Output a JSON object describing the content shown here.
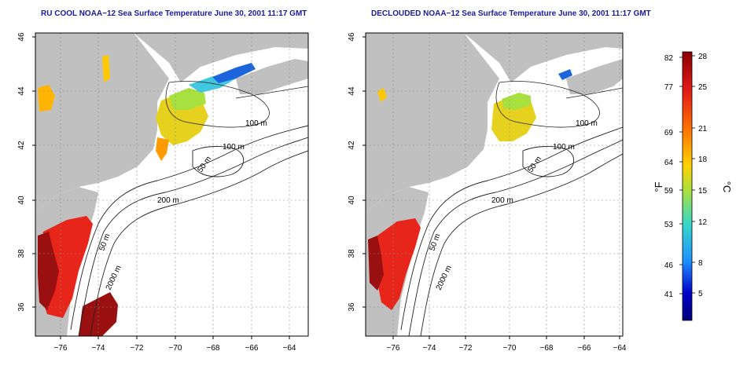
{
  "panels": [
    {
      "id": "left",
      "title": "RU COOL NOAA−12 Sea Surface Temperature June 30, 2001 11:17 GMT",
      "contour_labels": [
        "100 m",
        "100 m",
        "50 m",
        "200 m",
        "50 m",
        "2000 m"
      ]
    },
    {
      "id": "right",
      "title": "DECLOUDED NOAA−12 Sea Surface Temperature June 30, 2001 11:17 GMT",
      "contour_labels": [
        "100 m",
        "100 m",
        "50 m",
        "200 m",
        "50 m",
        "2000 m"
      ]
    }
  ],
  "axes": {
    "x_ticks": [
      "−76",
      "−74",
      "−72",
      "−70",
      "−68",
      "−66",
      "−64"
    ],
    "y_ticks": [
      "46",
      "44",
      "42",
      "40",
      "38",
      "36"
    ]
  },
  "colorbar": {
    "unit_f": "°F",
    "unit_c": "°C",
    "f_ticks": [
      "82",
      "77",
      "69",
      "64",
      "59",
      "53",
      "46",
      "41"
    ],
    "c_ticks": [
      "28",
      "25",
      "21",
      "18",
      "15",
      "12",
      "8",
      "5"
    ],
    "scale_colors": [
      "#8b0000",
      "#e21818",
      "#ff7a00",
      "#ffd200",
      "#a8e040",
      "#38d8c8",
      "#1e90ff",
      "#0000c8",
      "#00007a"
    ]
  },
  "colors": {
    "land": "#c0c0c0",
    "warm_sst": "#e8251a",
    "hot_sst": "#9a0f0f",
    "yellow_sst": "#e6d21e",
    "cool_sst": "#40c8e0",
    "cold_sst": "#1e64dc"
  }
}
